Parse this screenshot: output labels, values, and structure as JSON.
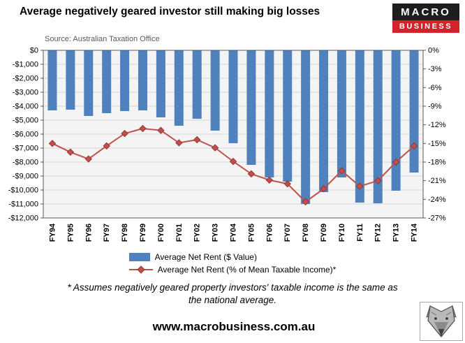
{
  "header": {
    "logo": {
      "line1": "MACRO",
      "line2": "BUSINESS",
      "top_bg": "#1d1d1d",
      "bottom_bg": "#d2232a"
    }
  },
  "source_note": "Source: Australian Taxation Office",
  "chart_data": {
    "type": "bar",
    "title": "Average negatively geared investor still making big losses",
    "categories": [
      "FY94",
      "FY95",
      "FY96",
      "FY97",
      "FY98",
      "FY99",
      "FY00",
      "FY01",
      "FY02",
      "FY03",
      "FY04",
      "FY05",
      "FY06",
      "FY07",
      "FY08",
      "FY09",
      "FY10",
      "FY11",
      "FY12",
      "FY13",
      "FY14"
    ],
    "series": [
      {
        "name": "Average Net Rent ($ Value)",
        "type": "bar",
        "axis": "left",
        "color": "#4F81BD",
        "values": [
          -4300,
          -4250,
          -4700,
          -4500,
          -4350,
          -4300,
          -4800,
          -5400,
          -4900,
          -5750,
          -6650,
          -8200,
          -9100,
          -9400,
          -11000,
          -10150,
          -9100,
          -10900,
          -10950,
          -10050,
          -8750
        ]
      },
      {
        "name": "Average Net Rent (% of Mean Taxable Income)*",
        "type": "line",
        "axis": "right",
        "color": "#C0504D",
        "marker": "diamond",
        "values": [
          -15.0,
          -16.4,
          -17.5,
          -15.4,
          -13.4,
          -12.6,
          -12.9,
          -14.9,
          -14.4,
          -15.7,
          -17.9,
          -19.9,
          -20.9,
          -21.5,
          -24.4,
          -22.3,
          -19.4,
          -21.9,
          -21.0,
          -18.0,
          -15.4
        ]
      }
    ],
    "left_axis": {
      "min": -12000,
      "max": 0,
      "step": 1000,
      "labels": [
        "$0",
        "-$1,000",
        "-$2,000",
        "-$3,000",
        "-$4,000",
        "-$5,000",
        "-$6,000",
        "-$7,000",
        "-$8,000",
        "-$9,000",
        "-$10,000",
        "-$11,000",
        "-$12,000"
      ]
    },
    "right_axis": {
      "min": -27,
      "max": 0,
      "step": 3,
      "labels": [
        "0%",
        "-3%",
        "-6%",
        "-9%",
        "-12%",
        "-15%",
        "-18%",
        "-21%",
        "-24%",
        "-27%"
      ]
    },
    "grid": true,
    "legend_position": "bottom",
    "plot_bg": "#f4f4f4",
    "grid_color": "#d6d6d6",
    "border_color": "#595959"
  },
  "footnote": {
    "line1": "* Assumes negatively geared property investors' taxable income is the same as",
    "line2": "the national average."
  },
  "footer": {
    "url": "www.macrobusiness.com.au"
  }
}
